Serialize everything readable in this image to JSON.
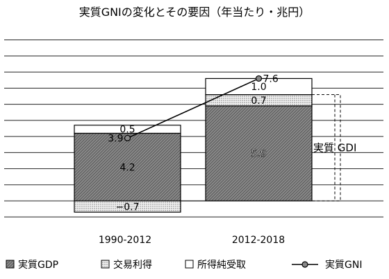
{
  "chart_data": {
    "type": "bar",
    "title": "実質GNIの変化とその要因（年当たり・兆円）",
    "categories": [
      "1990-2012",
      "2012-2018"
    ],
    "ylim": [
      -1.5,
      10.5
    ],
    "grid": true,
    "legend_position": "bottom",
    "series": [
      {
        "name": "実質GDP",
        "values": [
          4.2,
          5.9
        ],
        "labels": [
          "4.2",
          "5.9"
        ]
      },
      {
        "name": "交易利得",
        "values": [
          -0.7,
          0.7
        ],
        "labels": [
          "−0.7",
          "0.7"
        ]
      },
      {
        "name": "所得純受取",
        "values": [
          0.5,
          1.0
        ],
        "labels": [
          "0.5",
          "1.0"
        ]
      }
    ],
    "line": {
      "name": "実質GNI",
      "values": [
        3.9,
        7.6
      ],
      "labels": [
        "3.9",
        "7.6"
      ]
    },
    "annotation": {
      "text": "実質 GDI",
      "value": 6.6,
      "category_index": 1
    },
    "colors": {
      "gdp": "#6a6a6a",
      "trade": "#d2d2d2",
      "income": "#ffffff",
      "line": "#000000",
      "grid": "#222222"
    }
  }
}
